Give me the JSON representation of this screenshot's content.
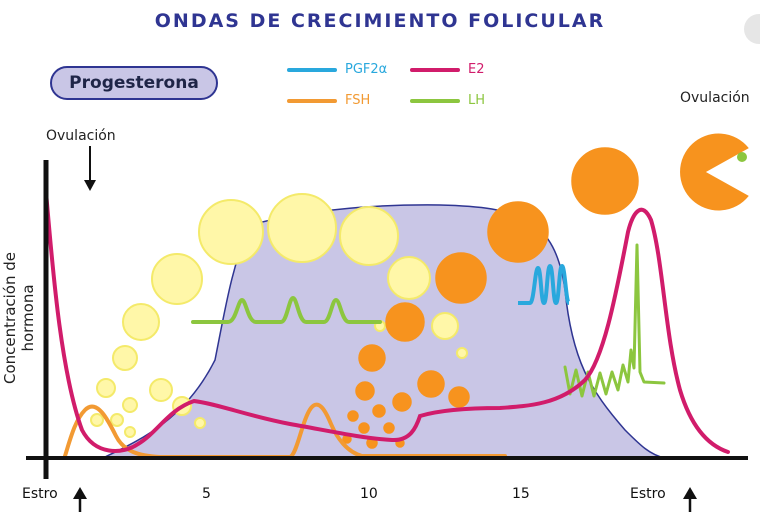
{
  "title": "ONDAS DE CRECIMIENTO FOLICULAR",
  "badge": "Progesterona",
  "legend": [
    {
      "label": "PGF2α",
      "color": "#29a8dd"
    },
    {
      "label": "E2",
      "color": "#d11c6b"
    },
    {
      "label": "FSH",
      "color": "#f29a33"
    },
    {
      "label": "LH",
      "color": "#8cc63f"
    }
  ],
  "labels": {
    "ovulation_left": "Ovulación",
    "ovulation_right": "Ovulación",
    "estro_left": "Estro",
    "estro_right": "Estro",
    "y_axis": "Concentración de hormona"
  },
  "x_ticks": [
    "5",
    "10",
    "15"
  ],
  "colors": {
    "progesterone_fill": "#c9c6e6",
    "progesterone_edge": "#2f3592",
    "follicle_yellow": "#fff7a8",
    "follicle_orange": "#f7931e",
    "axis": "#111111"
  },
  "icons": {
    "ovulation_marker": "down-arrow-icon",
    "estro_marker": "up-arrow-icon",
    "ovulating_follicle": "pacman-follicle-icon"
  }
}
